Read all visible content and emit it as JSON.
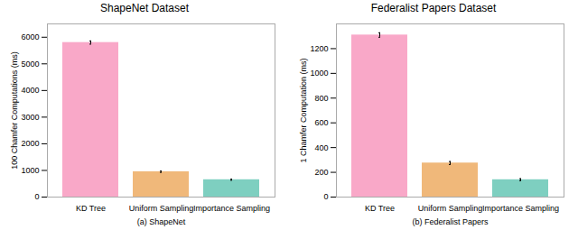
{
  "chart_data": [
    {
      "type": "bar",
      "title": "ShapeNet Dataset",
      "ylabel": "100 Chamfer Computations (ms)",
      "xlabel": "(a) ShapeNet",
      "categories": [
        "KD Tree",
        "Uniform Sampling",
        "Importance Sampling"
      ],
      "values": [
        5800,
        950,
        650
      ],
      "errors": [
        60,
        25,
        20
      ],
      "colors": [
        "#f9a8c8",
        "#f0b87a",
        "#7ecfc0"
      ],
      "ylim": [
        0,
        6500
      ],
      "yticks": [
        0,
        1000,
        2000,
        3000,
        4000,
        5000,
        6000
      ],
      "grid": false
    },
    {
      "type": "bar",
      "title": "Federalist Papers Dataset",
      "ylabel": "1 Chamfer Computation (ms)",
      "xlabel": "(b) Federalist Papers",
      "categories": [
        "KD Tree",
        "Uniform Sampling",
        "Importance Sampling"
      ],
      "values": [
        1310,
        275,
        140
      ],
      "errors": [
        18,
        12,
        8
      ],
      "colors": [
        "#f9a8c8",
        "#f0b87a",
        "#7ecfc0"
      ],
      "ylim": [
        0,
        1400
      ],
      "yticks": [
        0,
        200,
        400,
        600,
        800,
        1000,
        1200
      ],
      "grid": false
    }
  ]
}
